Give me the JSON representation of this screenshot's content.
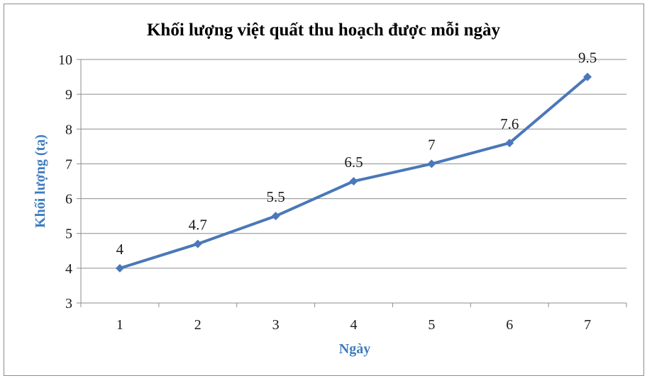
{
  "chart_data": {
    "type": "line",
    "title": "Khối lượng việt quất thu hoạch được mỗi ngày",
    "xlabel": "Ngày",
    "ylabel": "Khối lượng (tạ)",
    "categories": [
      "1",
      "2",
      "3",
      "4",
      "5",
      "6",
      "7"
    ],
    "series": [
      {
        "values": [
          4,
          4.7,
          5.5,
          6.5,
          7,
          7.6,
          9.5
        ]
      }
    ],
    "data_labels": [
      "4",
      "4.7",
      "5.5",
      "6.5",
      "7",
      "7.6",
      "9.5"
    ],
    "ylim": [
      3,
      10
    ],
    "yticks": [
      "3",
      "4",
      "5",
      "6",
      "7",
      "8",
      "9",
      "10"
    ],
    "grid": "horizontal",
    "legend": "none",
    "colors": {
      "line": "#4a78b8",
      "axis_title": "#3e7cc1",
      "grid": "#8c8c8c"
    }
  }
}
